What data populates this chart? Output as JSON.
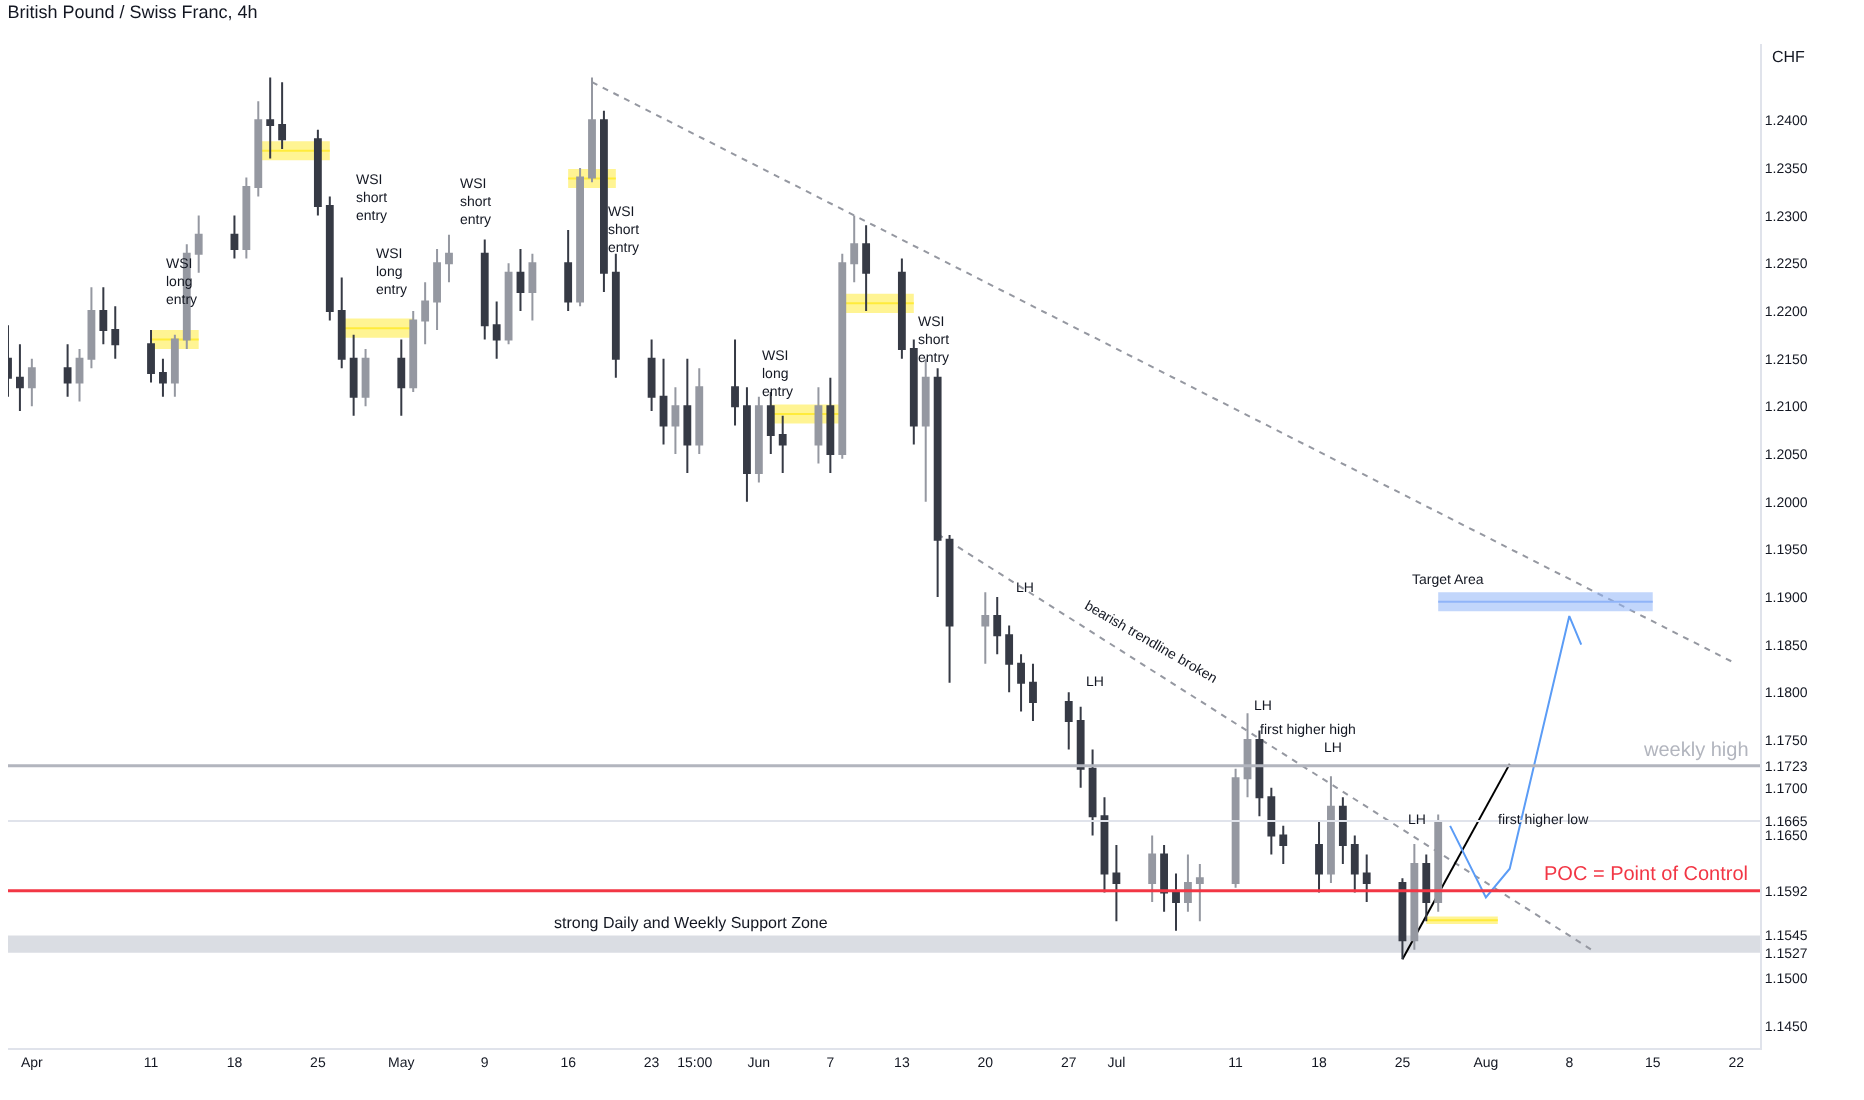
{
  "chart_data": {
    "type": "candlestick",
    "title": "British Pound / Swiss Franc, 4h",
    "ylabel": "CHF",
    "grid": false,
    "xlim": [
      "--03-30",
      "--08-24"
    ],
    "xticks": [
      {
        "value": "--04-01",
        "label": "Apr"
      },
      {
        "value": "--04-11",
        "label": "11"
      },
      {
        "value": "--04-18",
        "label": "18"
      },
      {
        "value": "--04-25",
        "label": "25"
      },
      {
        "value": "--05-02",
        "label": "May"
      },
      {
        "value": "--05-09",
        "label": "9"
      },
      {
        "value": "--05-16",
        "label": "16"
      },
      {
        "value": "--05-23",
        "label": "23"
      },
      {
        "value": "--05-26T15:00",
        "label": "15:00"
      },
      {
        "value": "--06-01",
        "label": "Jun"
      },
      {
        "value": "--06-07",
        "label": "7"
      },
      {
        "value": "--06-13",
        "label": "13"
      },
      {
        "value": "--06-20",
        "label": "20"
      },
      {
        "value": "--06-27",
        "label": "27"
      },
      {
        "value": "--07-01",
        "label": "Jul"
      },
      {
        "value": "--07-11",
        "label": "11"
      },
      {
        "value": "--07-18",
        "label": "18"
      },
      {
        "value": "--07-25",
        "label": "25"
      },
      {
        "value": "--08-01",
        "label": "Aug"
      },
      {
        "value": "--08-08",
        "label": "8"
      },
      {
        "value": "--08-15",
        "label": "15"
      },
      {
        "value": "--08-22",
        "label": "22"
      }
    ],
    "ylim": [
      1.1427,
      1.248
    ],
    "yticks": [
      {
        "value": 1.145,
        "label": "1.1450"
      },
      {
        "value": 1.15,
        "label": "1.1500"
      },
      1.1527,
      1.1545,
      1.1592,
      {
        "value": 1.165,
        "label": "1.1650"
      },
      1.1665,
      {
        "value": 1.17,
        "label": "1.1700"
      },
      1.1723,
      {
        "value": 1.175,
        "label": "1.1750"
      },
      {
        "value": 1.18,
        "label": "1.1800"
      },
      {
        "value": 1.185,
        "label": "1.1850"
      },
      {
        "value": 1.19,
        "label": "1.1900"
      },
      {
        "value": 1.195,
        "label": "1.1950"
      },
      {
        "value": 1.2,
        "label": "1.2000"
      },
      {
        "value": 1.205,
        "label": "1.2050"
      },
      {
        "value": 1.21,
        "label": "1.2100"
      },
      {
        "value": 1.215,
        "label": "1.2150"
      },
      {
        "value": 1.22,
        "label": "1.2200"
      },
      {
        "value": 1.225,
        "label": "1.2250"
      },
      {
        "value": 1.23,
        "label": "1.2300"
      },
      {
        "value": 1.235,
        "label": "1.2350"
      },
      {
        "value": 1.24,
        "label": "1.2400"
      }
    ],
    "series": [
      {
        "colors": [
          "#363a45",
          "#363a45",
          "#9598a1",
          "#363a45",
          "#9598a1",
          "#9598a1",
          "#363a45",
          "#363a45",
          "#363a45",
          "#363a45",
          "#9598a1",
          "#9598a1",
          "#9598a1",
          "#363a45",
          "#9598a1",
          "#9598a1",
          "#363a45",
          "#363a45",
          "#363a45",
          "#363a45",
          "#363a45",
          "#363a45",
          "#9598a1",
          "#363a45",
          "#9598a1",
          "#9598a1",
          "#9598a1",
          "#9598a1",
          "#363a45",
          "#363a45",
          "#9598a1",
          "#363a45",
          "#9598a1",
          "#363a45",
          "#9598a1",
          "#9598a1",
          "#363a45",
          "#363a45",
          "#363a45",
          "#363a45",
          "#9598a1",
          "#363a45",
          "#9598a1",
          "#363a45",
          "#363a45",
          "#9598a1",
          "#363a45",
          "#363a45",
          "#9598a1",
          "#363a45",
          "#9598a1",
          "#9598a1",
          "#363a45",
          "#363a45",
          "#363a45",
          "#9598a1",
          "#363a45",
          "#363a45",
          "#9598a1",
          "#363a45",
          "#363a45",
          "#363a45",
          "#363a45",
          "#363a45",
          "#363a45",
          "#363a45",
          "#363a45",
          "#363a45",
          "#9598a1",
          "#363a45",
          "#363a45",
          "#9598a1",
          "#9598a1",
          "#9598a1",
          "#9598a1",
          "#363a45",
          "#363a45",
          "#363a45",
          "#363a45",
          "#9598a1",
          "#363a45",
          "#363a45",
          "#363a45",
          "#363a45",
          "#9598a1",
          "#363a45",
          "#9598a1"
        ],
        "x": [
          "--03-30",
          "--03-31",
          "--04-01",
          "--04-04",
          "--04-05",
          "--04-06",
          "--04-07",
          "--04-08",
          "--04-11",
          "--04-12",
          "--04-13",
          "--04-14",
          "--04-15",
          "--04-18",
          "--04-19",
          "--04-20",
          "--04-21",
          "--04-22",
          "--04-25",
          "--04-26",
          "--04-27",
          "--04-28",
          "--04-29",
          "--05-02",
          "--05-03",
          "--05-04",
          "--05-05",
          "--05-06",
          "--05-09",
          "--05-10",
          "--05-11",
          "--05-12",
          "--05-13",
          "--05-16",
          "--05-17",
          "--05-18",
          "--05-19",
          "--05-20",
          "--05-23",
          "--05-24",
          "--05-25",
          "--05-26",
          "--05-27",
          "--05-30",
          "--05-31",
          "--06-01",
          "--06-02",
          "--06-03",
          "--06-06",
          "--06-07",
          "--06-08",
          "--06-09",
          "--06-10",
          "--06-13",
          "--06-14",
          "--06-15",
          "--06-16",
          "--06-17",
          "--06-20",
          "--06-21",
          "--06-22",
          "--06-23",
          "--06-24",
          "--06-27",
          "--06-28",
          "--06-29",
          "--06-30",
          "--07-01",
          "--07-04",
          "--07-05",
          "--07-06",
          "--07-07",
          "--07-08",
          "--07-11",
          "--07-12",
          "--07-13",
          "--07-14",
          "--07-15",
          "--07-18",
          "--07-19",
          "--07-20",
          "--07-21",
          "--07-22",
          "--07-25",
          "--07-26",
          "--07-27",
          "--07-28"
        ],
        "ohlc": [
          [
            1.215,
            1.2185,
            1.211,
            1.213
          ],
          [
            1.213,
            1.2165,
            1.2095,
            1.212
          ],
          [
            1.212,
            1.215,
            1.21,
            1.214
          ],
          [
            1.214,
            1.2165,
            1.211,
            1.2125
          ],
          [
            1.2125,
            1.216,
            1.2105,
            1.215
          ],
          [
            1.215,
            1.2225,
            1.214,
            1.22
          ],
          [
            1.22,
            1.2225,
            1.2165,
            1.218
          ],
          [
            1.218,
            1.2205,
            1.215,
            1.2165
          ],
          [
            1.2165,
            1.218,
            1.2125,
            1.2135
          ],
          [
            1.2135,
            1.215,
            1.211,
            1.2125
          ],
          [
            1.2125,
            1.2175,
            1.211,
            1.217
          ],
          [
            1.217,
            1.227,
            1.216,
            1.226
          ],
          [
            1.226,
            1.23,
            1.224,
            1.228
          ],
          [
            1.228,
            1.23,
            1.2255,
            1.2265
          ],
          [
            1.2265,
            1.234,
            1.2255,
            1.233
          ],
          [
            1.233,
            1.242,
            1.232,
            1.24
          ],
          [
            1.24,
            1.2445,
            1.236,
            1.2395
          ],
          [
            1.2395,
            1.244,
            1.237,
            1.238
          ],
          [
            1.238,
            1.239,
            1.23,
            1.231
          ],
          [
            1.231,
            1.232,
            1.219,
            1.22
          ],
          [
            1.22,
            1.2235,
            1.214,
            1.215
          ],
          [
            1.215,
            1.2175,
            1.209,
            1.211
          ],
          [
            1.211,
            1.216,
            1.21,
            1.215
          ],
          [
            1.215,
            1.217,
            1.209,
            1.212
          ],
          [
            1.212,
            1.22,
            1.2115,
            1.219
          ],
          [
            1.219,
            1.223,
            1.2165,
            1.221
          ],
          [
            1.221,
            1.2265,
            1.218,
            1.225
          ],
          [
            1.225,
            1.228,
            1.223,
            1.226
          ],
          [
            1.226,
            1.2275,
            1.217,
            1.2185
          ],
          [
            1.2185,
            1.221,
            1.215,
            1.217
          ],
          [
            1.217,
            1.225,
            1.2165,
            1.224
          ],
          [
            1.224,
            1.2265,
            1.22,
            1.222
          ],
          [
            1.222,
            1.226,
            1.219,
            1.225
          ],
          [
            1.225,
            1.2285,
            1.22,
            1.221
          ],
          [
            1.221,
            1.235,
            1.2205,
            1.234
          ],
          [
            1.234,
            1.2445,
            1.2335,
            1.24
          ],
          [
            1.24,
            1.241,
            1.222,
            1.224
          ],
          [
            1.224,
            1.226,
            1.213,
            1.215
          ],
          [
            1.215,
            1.217,
            1.2095,
            1.211
          ],
          [
            1.211,
            1.215,
            1.206,
            1.208
          ],
          [
            1.208,
            1.212,
            1.205,
            1.21
          ],
          [
            1.21,
            1.215,
            1.203,
            1.206
          ],
          [
            1.206,
            1.214,
            1.205,
            1.212
          ],
          [
            1.212,
            1.217,
            1.208,
            1.21
          ],
          [
            1.21,
            1.212,
            1.2,
            1.203
          ],
          [
            1.203,
            1.211,
            1.202,
            1.21
          ],
          [
            1.21,
            1.2115,
            1.205,
            1.207
          ],
          [
            1.207,
            1.209,
            1.203,
            1.206
          ],
          [
            1.206,
            1.212,
            1.204,
            1.21
          ],
          [
            1.21,
            1.213,
            1.203,
            1.205
          ],
          [
            1.205,
            1.226,
            1.2045,
            1.225
          ],
          [
            1.225,
            1.23,
            1.223,
            1.227
          ],
          [
            1.227,
            1.229,
            1.22,
            1.224
          ],
          [
            1.224,
            1.2255,
            1.215,
            1.216
          ],
          [
            1.216,
            1.217,
            1.206,
            1.208
          ],
          [
            1.208,
            1.215,
            1.2,
            1.213
          ],
          [
            1.213,
            1.214,
            1.19,
            1.196
          ],
          [
            1.196,
            1.1965,
            1.181,
            1.187
          ],
          [
            1.187,
            1.1905,
            1.183,
            1.188
          ],
          [
            1.188,
            1.19,
            1.184,
            1.186
          ],
          [
            1.186,
            1.187,
            1.18,
            1.183
          ],
          [
            1.183,
            1.184,
            1.178,
            1.181
          ],
          [
            1.181,
            1.183,
            1.177,
            1.179
          ],
          [
            1.179,
            1.18,
            1.174,
            1.177
          ],
          [
            1.177,
            1.1785,
            1.17,
            1.172
          ],
          [
            1.172,
            1.174,
            1.165,
            1.167
          ],
          [
            1.167,
            1.169,
            1.159,
            1.161
          ],
          [
            1.161,
            1.164,
            1.156,
            1.16
          ],
          [
            1.16,
            1.165,
            1.158,
            1.163
          ],
          [
            1.163,
            1.164,
            1.157,
            1.159
          ],
          [
            1.159,
            1.161,
            1.155,
            1.158
          ],
          [
            1.158,
            1.163,
            1.157,
            1.16
          ],
          [
            1.16,
            1.162,
            1.156,
            1.1605
          ],
          [
            1.16,
            1.172,
            1.1595,
            1.171
          ],
          [
            1.171,
            1.1778,
            1.169,
            1.175
          ],
          [
            1.175,
            1.176,
            1.167,
            1.169
          ],
          [
            1.169,
            1.17,
            1.163,
            1.165
          ],
          [
            1.165,
            1.166,
            1.162,
            1.164
          ],
          [
            1.164,
            1.1665,
            1.159,
            1.161
          ],
          [
            1.161,
            1.1712,
            1.16,
            1.168
          ],
          [
            1.168,
            1.169,
            1.162,
            1.164
          ],
          [
            1.164,
            1.165,
            1.159,
            1.161
          ],
          [
            1.161,
            1.163,
            1.158,
            1.16
          ],
          [
            1.16,
            1.1605,
            1.152,
            1.154
          ],
          [
            1.154,
            1.1641,
            1.153,
            1.162
          ],
          [
            1.162,
            1.163,
            1.156,
            1.158
          ],
          [
            1.158,
            1.1672,
            1.157,
            1.1665
          ]
        ]
      },
      {
        "type": "line",
        "color": "#9598a1",
        "line_style": "dotted",
        "x": [
          "--05-18",
          "--08-22"
        ],
        "values": [
          1.244,
          1.183
        ]
      },
      {
        "type": "line",
        "color": "#9598a1",
        "line_style": "dotted",
        "x": [
          "--06-16",
          "--08-10"
        ],
        "values": [
          1.1966,
          1.1529
        ]
      },
      {
        "type": "line",
        "color": "#000000",
        "line_style": "solid",
        "x": [
          "--07-25",
          "--08-03"
        ],
        "values": [
          1.152,
          1.1725
        ]
      },
      {
        "type": "line",
        "color": "#5b9cf6",
        "line_style": "solid",
        "x": [
          "--07-29",
          "--08-01",
          "--08-03",
          "--08-08",
          "--08-09"
        ],
        "values": [
          1.166,
          1.1585,
          1.1615,
          1.188,
          1.185
        ]
      },
      {
        "type": "line",
        "color": "#90b4f8",
        "x": [
          "--07-28",
          "--08-15"
        ],
        "values": [
          1.1895,
          1.1895
        ],
        "lower": [
          1.1885,
          1.1885
        ],
        "upper": [
          1.1905,
          1.1905
        ]
      },
      {
        "type": "line",
        "color": "#ffeb3b",
        "x": [
          "--04-11",
          "--04-15"
        ],
        "values": [
          1.217,
          1.217
        ],
        "lower": [
          1.216,
          1.216
        ],
        "upper": [
          1.218,
          1.218
        ]
      },
      {
        "type": "line",
        "color": "#ffeb3b",
        "x": [
          "--04-20",
          "--04-26"
        ],
        "values": [
          1.2368,
          1.2368
        ],
        "lower": [
          1.2358,
          1.2358
        ],
        "upper": [
          1.2378,
          1.2378
        ]
      },
      {
        "type": "line",
        "color": "#ffeb3b",
        "x": [
          "--04-27",
          "--05-03"
        ],
        "values": [
          1.2182,
          1.2182
        ],
        "lower": [
          1.2172,
          1.2172
        ],
        "upper": [
          1.2192,
          1.2192
        ]
      },
      {
        "type": "line",
        "color": "#ffeb3b",
        "x": [
          "--05-16",
          "--05-20"
        ],
        "values": [
          1.2339,
          1.2339
        ],
        "lower": [
          1.2329,
          1.2329
        ],
        "upper": [
          1.2349,
          1.2349
        ]
      },
      {
        "type": "line",
        "color": "#ffeb3b",
        "x": [
          "--06-02",
          "--06-08"
        ],
        "values": [
          1.2092,
          1.2092
        ],
        "lower": [
          1.2082,
          1.2082
        ],
        "upper": [
          1.2102,
          1.2102
        ]
      },
      {
        "type": "line",
        "color": "#ffeb3b",
        "x": [
          "--06-08",
          "--06-14"
        ],
        "values": [
          1.2208,
          1.2208
        ],
        "lower": [
          1.2198,
          1.2198
        ],
        "upper": [
          1.2218,
          1.2218
        ]
      },
      {
        "type": "line",
        "color": "#ffeb3b",
        "x": [
          "--07-27",
          "--08-02"
        ],
        "values": [
          1.1561,
          1.1561
        ],
        "lower": [
          1.1557,
          1.1557
        ],
        "upper": [
          1.1565,
          1.1565
        ]
      }
    ],
    "ref_lines": [
      {
        "axis": "y",
        "value": 1.1723,
        "label": "weekly high",
        "color": "#b2b5be"
      },
      {
        "axis": "y",
        "value": 1.1665,
        "color": "#e0e3eb"
      },
      {
        "axis": "y",
        "value": 1.1592,
        "label": "POC = Point of Control",
        "color": "#f23645"
      }
    ],
    "bands": [
      {
        "axis": "y",
        "from": 1.1527,
        "to": 1.1545,
        "label": "strong Daily and Weekly Support Zone",
        "color": "#d1d4dc"
      }
    ],
    "annotations": [
      "WSI long entry",
      "WSI short entry",
      "WSI long entry",
      "WSI short entry",
      "WSI short entry",
      "WSI long entry",
      "WSI short entry",
      "LH",
      "LH",
      "LH",
      "LH",
      "LH",
      "bearish trendline broken",
      "first higher high",
      "first higher low",
      "Target Area"
    ]
  }
}
